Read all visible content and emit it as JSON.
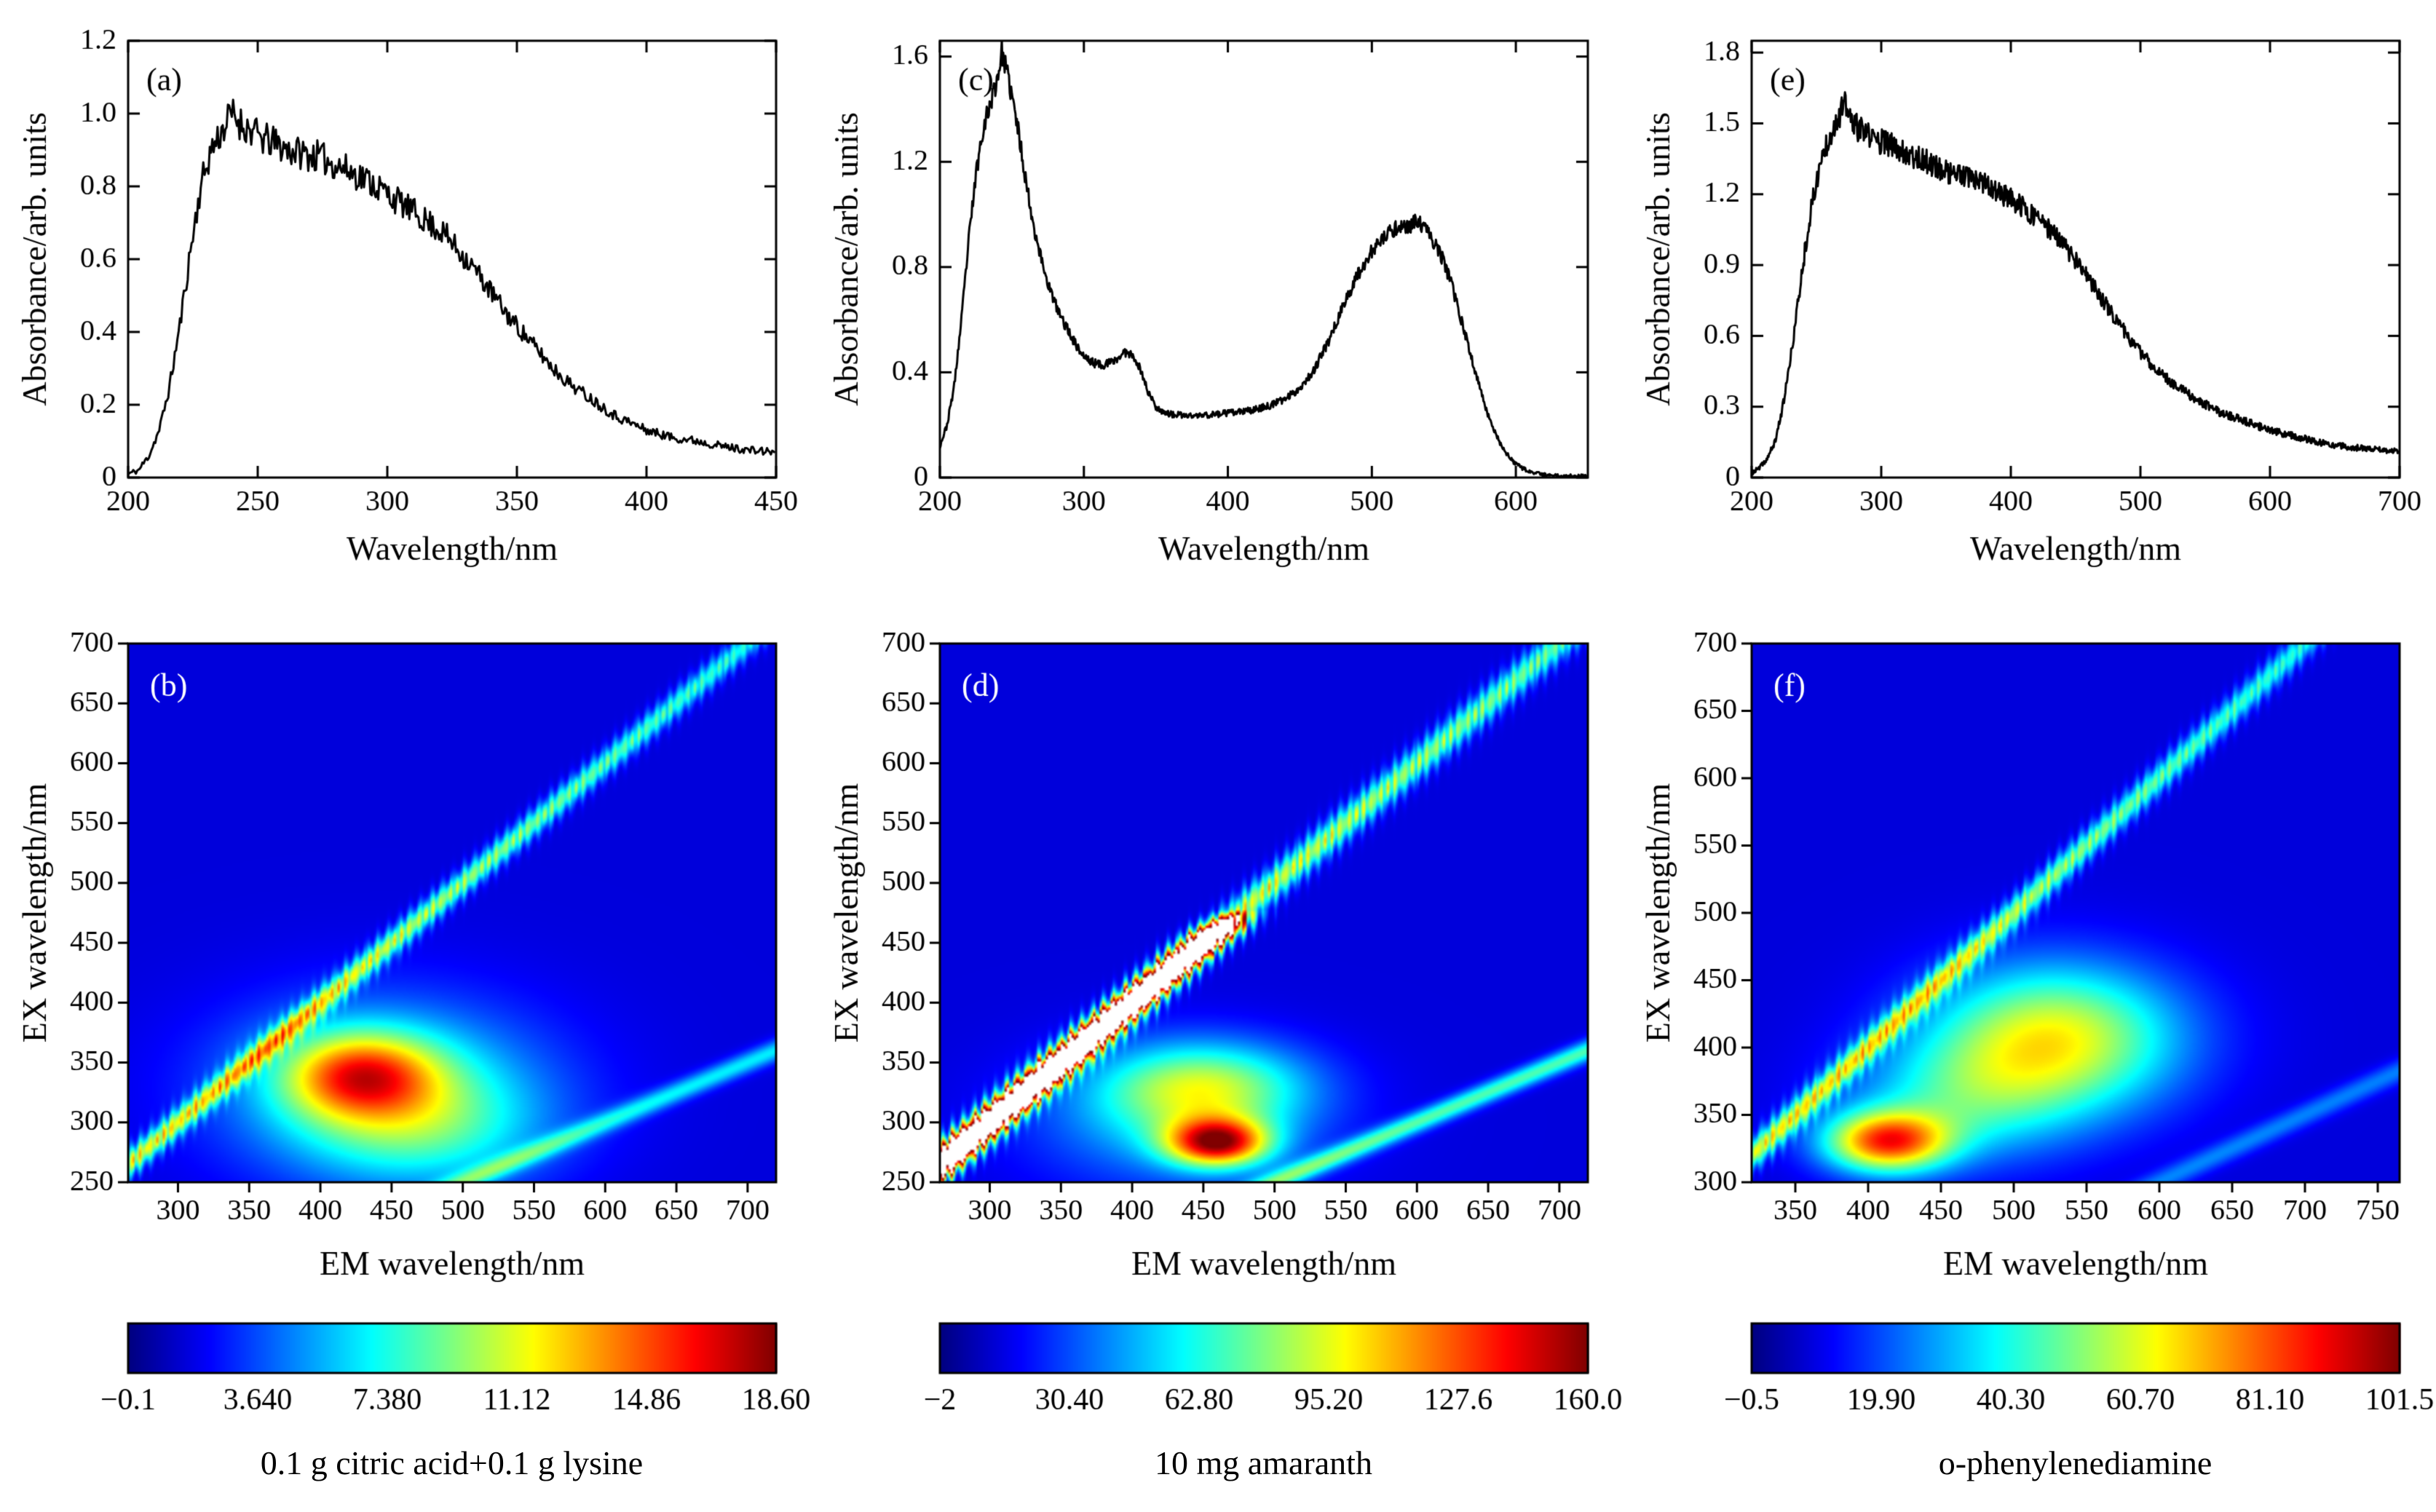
{
  "chart_data": [
    {
      "id": "a",
      "type": "line",
      "tag": "(a)",
      "xlabel": "Wavelength/nm",
      "ylabel": "Absorbance/arb. units",
      "xlim": [
        200,
        450
      ],
      "ylim": [
        0,
        1.2
      ],
      "xticks": [
        200,
        250,
        300,
        350,
        400,
        450
      ],
      "yticks": [
        [
          0,
          "0"
        ],
        [
          0.2,
          "0.2"
        ],
        [
          0.4,
          "0.4"
        ],
        [
          0.6,
          "0.6"
        ],
        [
          0.8,
          "0.8"
        ],
        [
          1.0,
          "1.0"
        ],
        [
          1.2,
          "1.2"
        ]
      ],
      "noise": 0.05,
      "seed": 11,
      "curve": [
        [
          200,
          0.01
        ],
        [
          204,
          0.02
        ],
        [
          208,
          0.06
        ],
        [
          212,
          0.13
        ],
        [
          216,
          0.25
        ],
        [
          220,
          0.42
        ],
        [
          224,
          0.62
        ],
        [
          228,
          0.8
        ],
        [
          232,
          0.9
        ],
        [
          236,
          0.95
        ],
        [
          240,
          1.0
        ],
        [
          244,
          0.97
        ],
        [
          248,
          0.95
        ],
        [
          252,
          0.93
        ],
        [
          256,
          0.92
        ],
        [
          262,
          0.9
        ],
        [
          268,
          0.89
        ],
        [
          274,
          0.88
        ],
        [
          280,
          0.86
        ],
        [
          286,
          0.84
        ],
        [
          292,
          0.82
        ],
        [
          298,
          0.79
        ],
        [
          304,
          0.76
        ],
        [
          310,
          0.73
        ],
        [
          316,
          0.7
        ],
        [
          322,
          0.67
        ],
        [
          328,
          0.62
        ],
        [
          334,
          0.57
        ],
        [
          340,
          0.51
        ],
        [
          346,
          0.45
        ],
        [
          352,
          0.4
        ],
        [
          358,
          0.35
        ],
        [
          364,
          0.3
        ],
        [
          370,
          0.26
        ],
        [
          376,
          0.23
        ],
        [
          382,
          0.2
        ],
        [
          388,
          0.17
        ],
        [
          394,
          0.15
        ],
        [
          400,
          0.13
        ],
        [
          410,
          0.11
        ],
        [
          420,
          0.1
        ],
        [
          430,
          0.085
        ],
        [
          440,
          0.075
        ],
        [
          450,
          0.07
        ]
      ]
    },
    {
      "id": "b",
      "type": "heatmap",
      "tag": "(b)",
      "xlabel": "EM wavelength/nm",
      "ylabel": "EX wavelength/nm",
      "xlim": [
        265,
        720
      ],
      "ylim": [
        250,
        700
      ],
      "xticks": [
        300,
        350,
        400,
        450,
        500,
        550,
        600,
        650,
        700
      ],
      "yticks": [
        250,
        300,
        350,
        400,
        450,
        500,
        550,
        600,
        650,
        700
      ],
      "baseline": 0.09,
      "white_cut": 9,
      "blobs": [
        {
          "em": 428,
          "ex": 340,
          "sem": 38,
          "sex": 25,
          "amp": 0.5
        },
        {
          "em": 445,
          "ex": 330,
          "sem": 80,
          "sex": 52,
          "amp": 0.28
        },
        {
          "em": 470,
          "ex": 295,
          "sem": 60,
          "sex": 35,
          "amp": 0.22
        }
      ],
      "diag1": {
        "width": 8,
        "jag": 0.25,
        "stops": [
          [
            250,
            0.5
          ],
          [
            430,
            0.46
          ],
          [
            700,
            0.3
          ]
        ]
      },
      "diag2": {
        "width": 13,
        "amp": 0.27
      },
      "value_range": [
        -0.1,
        18.6
      ],
      "colorbar_ticks": [
        "−0.1",
        "3.640",
        "7.380",
        "11.12",
        "14.86",
        "18.60"
      ],
      "caption": "0.1 g citric acid+0.1 g lysine"
    },
    {
      "id": "c",
      "type": "line",
      "tag": "(c)",
      "xlabel": "Wavelength/nm",
      "ylabel": "Absorbance/arb. units",
      "xlim": [
        200,
        650
      ],
      "ylim": [
        0,
        1.66
      ],
      "xticks": [
        200,
        300,
        400,
        500,
        600
      ],
      "yticks": [
        [
          0,
          "0"
        ],
        [
          0.4,
          "0.4"
        ],
        [
          0.8,
          "0.8"
        ],
        [
          1.2,
          "1.2"
        ],
        [
          1.6,
          "1.6"
        ]
      ],
      "noise": 0.045,
      "seed": 23,
      "curve": [
        [
          200,
          0.12
        ],
        [
          205,
          0.2
        ],
        [
          210,
          0.35
        ],
        [
          215,
          0.6
        ],
        [
          220,
          0.9
        ],
        [
          225,
          1.15
        ],
        [
          230,
          1.33
        ],
        [
          235,
          1.42
        ],
        [
          240,
          1.52
        ],
        [
          243,
          1.62
        ],
        [
          246,
          1.55
        ],
        [
          250,
          1.45
        ],
        [
          255,
          1.3
        ],
        [
          260,
          1.12
        ],
        [
          265,
          0.96
        ],
        [
          270,
          0.84
        ],
        [
          275,
          0.74
        ],
        [
          280,
          0.66
        ],
        [
          285,
          0.6
        ],
        [
          290,
          0.55
        ],
        [
          295,
          0.5
        ],
        [
          300,
          0.46
        ],
        [
          305,
          0.44
        ],
        [
          310,
          0.43
        ],
        [
          315,
          0.43
        ],
        [
          320,
          0.44
        ],
        [
          325,
          0.46
        ],
        [
          330,
          0.48
        ],
        [
          335,
          0.46
        ],
        [
          340,
          0.4
        ],
        [
          345,
          0.32
        ],
        [
          350,
          0.27
        ],
        [
          355,
          0.25
        ],
        [
          360,
          0.24
        ],
        [
          370,
          0.235
        ],
        [
          380,
          0.235
        ],
        [
          390,
          0.24
        ],
        [
          400,
          0.245
        ],
        [
          410,
          0.25
        ],
        [
          420,
          0.26
        ],
        [
          430,
          0.275
        ],
        [
          440,
          0.3
        ],
        [
          450,
          0.34
        ],
        [
          460,
          0.41
        ],
        [
          470,
          0.52
        ],
        [
          480,
          0.65
        ],
        [
          490,
          0.77
        ],
        [
          500,
          0.86
        ],
        [
          510,
          0.92
        ],
        [
          515,
          0.94
        ],
        [
          520,
          0.96
        ],
        [
          525,
          0.95
        ],
        [
          530,
          0.97
        ],
        [
          535,
          0.96
        ],
        [
          540,
          0.92
        ],
        [
          545,
          0.88
        ],
        [
          550,
          0.82
        ],
        [
          555,
          0.74
        ],
        [
          560,
          0.64
        ],
        [
          565,
          0.54
        ],
        [
          570,
          0.44
        ],
        [
          575,
          0.34
        ],
        [
          580,
          0.25
        ],
        [
          585,
          0.18
        ],
        [
          590,
          0.12
        ],
        [
          595,
          0.08
        ],
        [
          600,
          0.05
        ],
        [
          610,
          0.02
        ],
        [
          620,
          0.01
        ],
        [
          635,
          0.006
        ],
        [
          650,
          0.005
        ]
      ]
    },
    {
      "id": "d",
      "type": "heatmap",
      "tag": "(d)",
      "xlabel": "EM wavelength/nm",
      "ylabel": "EX wavelength/nm",
      "xlim": [
        265,
        720
      ],
      "ylim": [
        250,
        700
      ],
      "xticks": [
        300,
        350,
        400,
        450,
        500,
        550,
        600,
        650,
        700
      ],
      "yticks": [
        250,
        300,
        350,
        400,
        450,
        500,
        550,
        600,
        650,
        700
      ],
      "baseline": 0.09,
      "white_cut": 1.06,
      "blobs": [
        {
          "em": 460,
          "ex": 283,
          "sem": 25,
          "sex": 14,
          "amp": 0.72
        },
        {
          "em": 450,
          "ex": 330,
          "sem": 50,
          "sex": 26,
          "amp": 0.38
        },
        {
          "em": 430,
          "ex": 300,
          "sem": 70,
          "sex": 40,
          "amp": 0.2
        }
      ],
      "diag1": {
        "width": 10,
        "jag": 0.3,
        "stops": [
          [
            250,
            1.9
          ],
          [
            458,
            1.9
          ],
          [
            478,
            0.48
          ],
          [
            700,
            0.36
          ]
        ]
      },
      "diag2": {
        "width": 13,
        "amp": 0.36
      },
      "value_range": [
        -2,
        160.0
      ],
      "colorbar_ticks": [
        "−2",
        "30.40",
        "62.80",
        "95.20",
        "127.6",
        "160.0"
      ],
      "caption": "10 mg amaranth"
    },
    {
      "id": "e",
      "type": "line",
      "tag": "(e)",
      "xlabel": "Wavelength/nm",
      "ylabel": "Absorbance/arb. units",
      "xlim": [
        200,
        700
      ],
      "ylim": [
        0,
        1.85
      ],
      "xticks": [
        200,
        300,
        400,
        500,
        600,
        700
      ],
      "yticks": [
        [
          0,
          "0"
        ],
        [
          0.3,
          "0.3"
        ],
        [
          0.6,
          "0.6"
        ],
        [
          0.9,
          "0.9"
        ],
        [
          1.2,
          "1.2"
        ],
        [
          1.5,
          "1.5"
        ],
        [
          1.8,
          "1.8"
        ]
      ],
      "noise": 0.06,
      "seed": 37,
      "curve": [
        [
          200,
          0.02
        ],
        [
          206,
          0.04
        ],
        [
          212,
          0.08
        ],
        [
          218,
          0.15
        ],
        [
          224,
          0.3
        ],
        [
          230,
          0.5
        ],
        [
          236,
          0.75
        ],
        [
          242,
          1.0
        ],
        [
          248,
          1.2
        ],
        [
          254,
          1.35
        ],
        [
          260,
          1.45
        ],
        [
          266,
          1.52
        ],
        [
          272,
          1.58
        ],
        [
          278,
          1.5
        ],
        [
          284,
          1.47
        ],
        [
          290,
          1.45
        ],
        [
          296,
          1.43
        ],
        [
          302,
          1.42
        ],
        [
          310,
          1.4
        ],
        [
          318,
          1.38
        ],
        [
          326,
          1.36
        ],
        [
          334,
          1.34
        ],
        [
          342,
          1.32
        ],
        [
          350,
          1.3
        ],
        [
          360,
          1.28
        ],
        [
          370,
          1.26
        ],
        [
          380,
          1.24
        ],
        [
          390,
          1.21
        ],
        [
          400,
          1.18
        ],
        [
          410,
          1.14
        ],
        [
          420,
          1.1
        ],
        [
          430,
          1.05
        ],
        [
          440,
          0.99
        ],
        [
          450,
          0.92
        ],
        [
          460,
          0.84
        ],
        [
          470,
          0.76
        ],
        [
          480,
          0.68
        ],
        [
          490,
          0.6
        ],
        [
          500,
          0.53
        ],
        [
          510,
          0.47
        ],
        [
          520,
          0.42
        ],
        [
          530,
          0.38
        ],
        [
          540,
          0.34
        ],
        [
          550,
          0.31
        ],
        [
          560,
          0.28
        ],
        [
          570,
          0.26
        ],
        [
          580,
          0.24
        ],
        [
          590,
          0.22
        ],
        [
          600,
          0.2
        ],
        [
          615,
          0.18
        ],
        [
          630,
          0.16
        ],
        [
          645,
          0.14
        ],
        [
          660,
          0.13
        ],
        [
          680,
          0.12
        ],
        [
          700,
          0.11
        ]
      ]
    },
    {
      "id": "f",
      "type": "heatmap",
      "tag": "(f)",
      "xlabel": "EM wavelength/nm",
      "ylabel": "EX wavelength/nm",
      "xlim": [
        320,
        765
      ],
      "ylim": [
        300,
        700
      ],
      "xticks": [
        350,
        400,
        450,
        500,
        550,
        600,
        650,
        700,
        750
      ],
      "yticks": [
        300,
        350,
        400,
        450,
        500,
        550,
        600,
        650,
        700
      ],
      "baseline": 0.09,
      "white_cut": 9,
      "blobs": [
        {
          "em": 413,
          "ex": 330,
          "sem": 30,
          "sex": 16,
          "amp": 0.68
        },
        {
          "em": 528,
          "ex": 407,
          "sem": 60,
          "sex": 38,
          "amp": 0.52
        },
        {
          "em": 465,
          "ex": 360,
          "sem": 55,
          "sex": 32,
          "amp": 0.25
        }
      ],
      "diag1": {
        "width": 8,
        "jag": 0.22,
        "stops": [
          [
            300,
            0.5
          ],
          [
            480,
            0.45
          ],
          [
            700,
            0.3
          ]
        ]
      },
      "diag2": {
        "width": 13,
        "amp": 0.16
      },
      "value_range": [
        -0.5,
        101.5
      ],
      "colorbar_ticks": [
        "−0.5",
        "19.90",
        "40.30",
        "60.70",
        "81.10",
        "101.5"
      ],
      "caption": "o-phenylenediamine"
    }
  ]
}
